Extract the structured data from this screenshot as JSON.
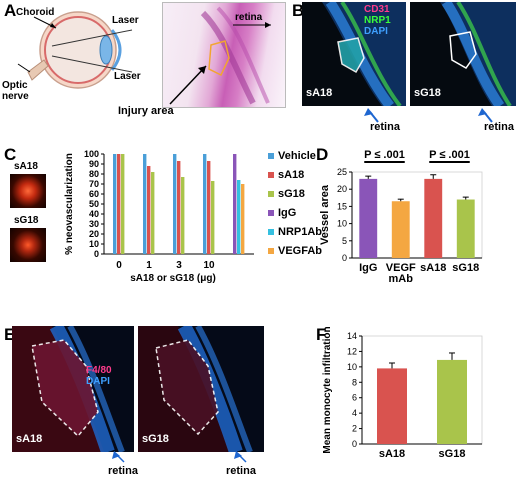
{
  "panels": {
    "A": {
      "letter": "A",
      "labels": {
        "choroid": "Choroid",
        "laser_top": "Laser",
        "laser_bottom": "Laser",
        "optic_nerve": "Optic\nnerve",
        "retina": "retina",
        "injury": "Injury area"
      }
    },
    "B": {
      "letter": "B",
      "legend": [
        "CD31",
        "NRP1",
        "DAPI"
      ],
      "legend_colors": [
        "#ff3c8c",
        "#39ff3a",
        "#3fa0ff"
      ],
      "left_tag": "sA18",
      "right_tag": "sG18",
      "retina_left": "retina",
      "retina_right": "retina"
    },
    "C": {
      "letter": "C",
      "thumb_tags": [
        "sA18",
        "sG18"
      ]
    },
    "D": {
      "letter": "D",
      "p_left": "P ≤ .001",
      "p_right": "P ≤ .001"
    },
    "E": {
      "letter": "E",
      "legend": [
        "F4/80",
        "DAPI"
      ],
      "legend_colors": [
        "#ff3c8c",
        "#3fa0ff"
      ],
      "left_tag": "sA18",
      "right_tag": "sG18",
      "retina_left": "retina",
      "retina_right": "retina"
    },
    "F": {
      "letter": "F"
    }
  },
  "chart_data": [
    {
      "id": "C",
      "type": "bar",
      "categories": [
        "0",
        "1",
        "3",
        "10",
        ""
      ],
      "xlabel": "sA18 or sG18 (μg)",
      "ylabel": "% neovascularization",
      "ylim": [
        0,
        100
      ],
      "yticks": [
        0,
        10,
        20,
        30,
        40,
        50,
        60,
        70,
        80,
        90,
        100
      ],
      "legend_position": "right",
      "series": [
        {
          "name": "Vehicle",
          "color": "#4a9fd8",
          "values": [
            100,
            100,
            100,
            100,
            null
          ]
        },
        {
          "name": "sA18",
          "color": "#d9534f",
          "values": [
            100,
            88,
            93,
            93,
            null
          ]
        },
        {
          "name": "sG18",
          "color": "#a9c44b",
          "values": [
            100,
            82,
            77,
            73,
            null
          ]
        },
        {
          "name": "IgG",
          "color": "#8a55b8",
          "values": [
            null,
            null,
            null,
            null,
            100
          ]
        },
        {
          "name": "NRP1Ab",
          "color": "#35c0e0",
          "values": [
            null,
            null,
            null,
            null,
            74
          ]
        },
        {
          "name": "VEGFAb",
          "color": "#f4a742",
          "values": [
            null,
            null,
            null,
            null,
            70
          ]
        }
      ]
    },
    {
      "id": "D",
      "type": "bar",
      "categories": [
        "IgG",
        "VEGF\nmAb",
        "sA18",
        "sG18"
      ],
      "values": [
        23,
        16.5,
        23,
        17
      ],
      "errors": [
        0.8,
        0.6,
        1.2,
        0.7
      ],
      "colors": [
        "#8a55b8",
        "#f4a742",
        "#d9534f",
        "#a9c44b"
      ],
      "ylabel": "Vessel area",
      "ylim": [
        0,
        25
      ],
      "yticks": [
        0,
        5,
        10,
        15,
        20,
        25
      ]
    },
    {
      "id": "F",
      "type": "bar",
      "categories": [
        "sA18",
        "sG18"
      ],
      "values": [
        9.8,
        10.9
      ],
      "errors": [
        0.7,
        0.9
      ],
      "colors": [
        "#d9534f",
        "#a9c44b"
      ],
      "ylabel": "Mean monocyte infiltration",
      "ylim": [
        0,
        14
      ],
      "yticks": [
        0,
        2,
        4,
        6,
        8,
        10,
        12,
        14
      ]
    }
  ]
}
